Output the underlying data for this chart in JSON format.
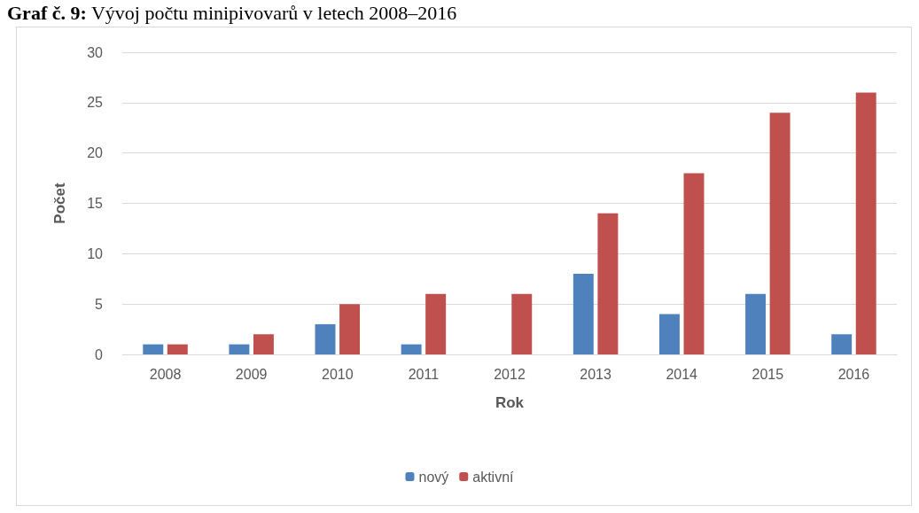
{
  "chart_data": {
    "type": "bar",
    "title": "Graf č. 9: Vývoj počtu minipivovarů v letech 2008–2016",
    "xlabel": "Rok",
    "ylabel": "Počet",
    "categories": [
      "2008",
      "2009",
      "2010",
      "2011",
      "2012",
      "2013",
      "2014",
      "2015",
      "2016"
    ],
    "series": [
      {
        "name": "nový",
        "color": "#4f81bd",
        "values": [
          1,
          1,
          3,
          1,
          0,
          8,
          4,
          6,
          2
        ]
      },
      {
        "name": "aktivní",
        "color": "#c0504d",
        "values": [
          1,
          2,
          5,
          6,
          6,
          14,
          18,
          24,
          26
        ]
      }
    ],
    "ylim": [
      0,
      30
    ],
    "yticks": [
      0,
      5,
      10,
      15,
      20,
      25,
      30
    ],
    "grid": "y",
    "legend": "bottom"
  }
}
